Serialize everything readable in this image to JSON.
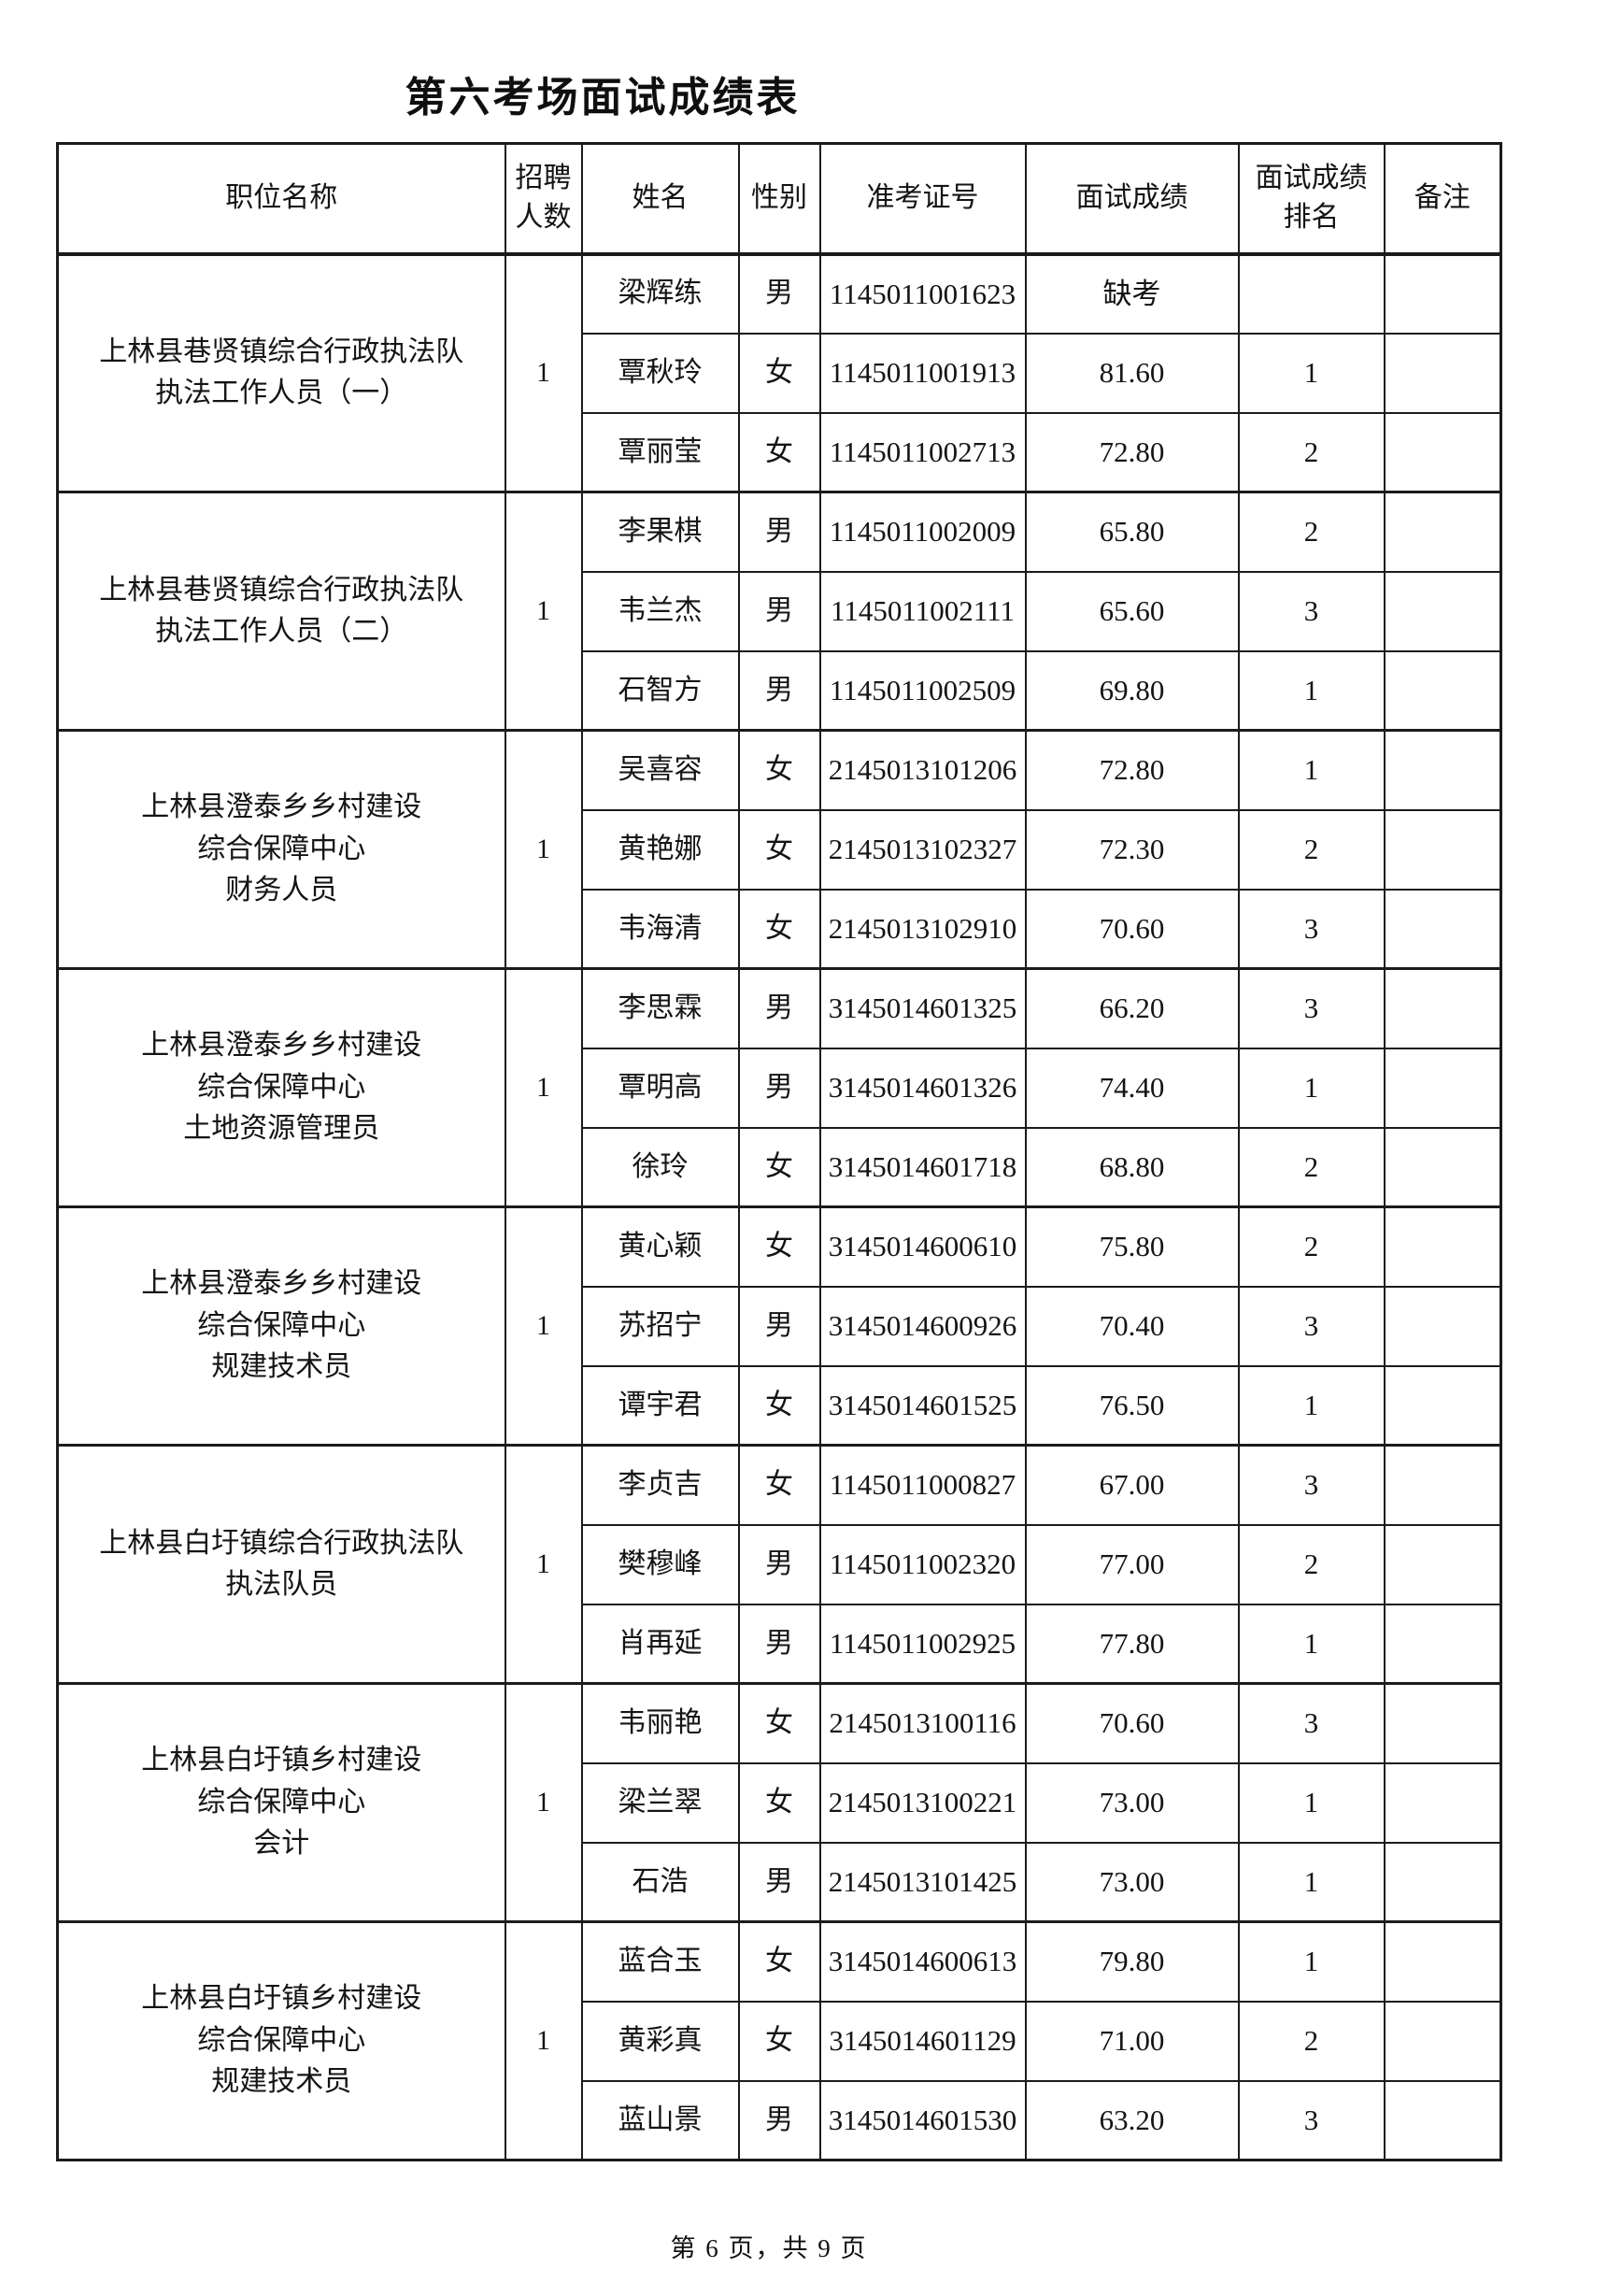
{
  "page": {
    "title": "第六考场面试成绩表",
    "footer": "第 6 页，共 9 页"
  },
  "table": {
    "headers": [
      "职位名称",
      "招聘人数",
      "姓名",
      "性别",
      "准考证号",
      "面试成绩",
      "面试成绩排名",
      "备注"
    ],
    "groups": [
      {
        "position": "上林县巷贤镇综合行政执法队\n执法工作人员（一）",
        "recruits": "1",
        "candidates": [
          {
            "name": "梁辉练",
            "gender": "男",
            "id": "1145011001623",
            "score": "缺考",
            "rank": "",
            "note": ""
          },
          {
            "name": "覃秋玲",
            "gender": "女",
            "id": "1145011001913",
            "score": "81.60",
            "rank": "1",
            "note": ""
          },
          {
            "name": "覃丽莹",
            "gender": "女",
            "id": "1145011002713",
            "score": "72.80",
            "rank": "2",
            "note": ""
          }
        ]
      },
      {
        "position": "上林县巷贤镇综合行政执法队\n执法工作人员（二）",
        "recruits": "1",
        "candidates": [
          {
            "name": "李果棋",
            "gender": "男",
            "id": "1145011002009",
            "score": "65.80",
            "rank": "2",
            "note": ""
          },
          {
            "name": "韦兰杰",
            "gender": "男",
            "id": "1145011002111",
            "score": "65.60",
            "rank": "3",
            "note": ""
          },
          {
            "name": "石智方",
            "gender": "男",
            "id": "1145011002509",
            "score": "69.80",
            "rank": "1",
            "note": ""
          }
        ]
      },
      {
        "position": "上林县澄泰乡乡村建设\n综合保障中心\n财务人员",
        "recruits": "1",
        "candidates": [
          {
            "name": "吴喜容",
            "gender": "女",
            "id": "2145013101206",
            "score": "72.80",
            "rank": "1",
            "note": ""
          },
          {
            "name": "黄艳娜",
            "gender": "女",
            "id": "2145013102327",
            "score": "72.30",
            "rank": "2",
            "note": ""
          },
          {
            "name": "韦海清",
            "gender": "女",
            "id": "2145013102910",
            "score": "70.60",
            "rank": "3",
            "note": ""
          }
        ]
      },
      {
        "position": "上林县澄泰乡乡村建设\n综合保障中心\n土地资源管理员",
        "recruits": "1",
        "candidates": [
          {
            "name": "李思霖",
            "gender": "男",
            "id": "3145014601325",
            "score": "66.20",
            "rank": "3",
            "note": ""
          },
          {
            "name": "覃明高",
            "gender": "男",
            "id": "3145014601326",
            "score": "74.40",
            "rank": "1",
            "note": ""
          },
          {
            "name": "徐玲",
            "gender": "女",
            "id": "3145014601718",
            "score": "68.80",
            "rank": "2",
            "note": ""
          }
        ]
      },
      {
        "position": "上林县澄泰乡乡村建设\n综合保障中心\n规建技术员",
        "recruits": "1",
        "candidates": [
          {
            "name": "黄心颖",
            "gender": "女",
            "id": "3145014600610",
            "score": "75.80",
            "rank": "2",
            "note": ""
          },
          {
            "name": "苏招宁",
            "gender": "男",
            "id": "3145014600926",
            "score": "70.40",
            "rank": "3",
            "note": ""
          },
          {
            "name": "谭宇君",
            "gender": "女",
            "id": "3145014601525",
            "score": "76.50",
            "rank": "1",
            "note": ""
          }
        ]
      },
      {
        "position": "上林县白圩镇综合行政执法队\n执法队员",
        "recruits": "1",
        "candidates": [
          {
            "name": "李贞吉",
            "gender": "女",
            "id": "1145011000827",
            "score": "67.00",
            "rank": "3",
            "note": ""
          },
          {
            "name": "樊穆峰",
            "gender": "男",
            "id": "1145011002320",
            "score": "77.00",
            "rank": "2",
            "note": ""
          },
          {
            "name": "肖再延",
            "gender": "男",
            "id": "1145011002925",
            "score": "77.80",
            "rank": "1",
            "note": ""
          }
        ]
      },
      {
        "position": "上林县白圩镇乡村建设\n综合保障中心\n会计",
        "recruits": "1",
        "candidates": [
          {
            "name": "韦丽艳",
            "gender": "女",
            "id": "2145013100116",
            "score": "70.60",
            "rank": "3",
            "note": ""
          },
          {
            "name": "梁兰翠",
            "gender": "女",
            "id": "2145013100221",
            "score": "73.00",
            "rank": "1",
            "note": ""
          },
          {
            "name": "石浩",
            "gender": "男",
            "id": "2145013101425",
            "score": "73.00",
            "rank": "1",
            "note": ""
          }
        ]
      },
      {
        "position": "上林县白圩镇乡村建设\n综合保障中心\n规建技术员",
        "recruits": "1",
        "candidates": [
          {
            "name": "蓝合玉",
            "gender": "女",
            "id": "3145014600613",
            "score": "79.80",
            "rank": "1",
            "note": ""
          },
          {
            "name": "黄彩真",
            "gender": "女",
            "id": "3145014601129",
            "score": "71.00",
            "rank": "2",
            "note": ""
          },
          {
            "name": "蓝山景",
            "gender": "男",
            "id": "3145014601530",
            "score": "63.20",
            "rank": "3",
            "note": ""
          }
        ]
      }
    ]
  }
}
